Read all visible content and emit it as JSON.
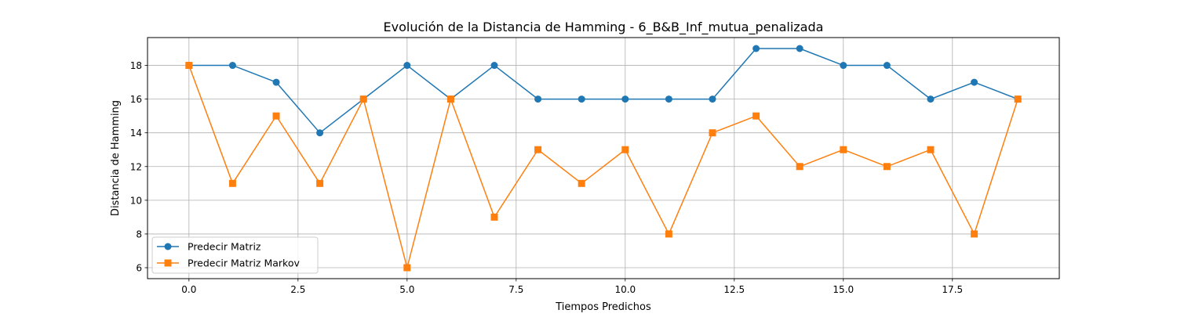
{
  "chart_data": {
    "type": "line",
    "title": "Evolución de la Distancia de Hamming - 6_B&B_Inf_mutua_penalizada",
    "xlabel": "Tiempos Predichos",
    "ylabel": "Distancia de Hamming",
    "x": [
      0,
      1,
      2,
      3,
      4,
      5,
      6,
      7,
      8,
      9,
      10,
      11,
      12,
      13,
      14,
      15,
      16,
      17,
      18,
      19
    ],
    "xlim": [
      -0.95,
      19.95
    ],
    "ylim": [
      5.35,
      19.65
    ],
    "xticks": [
      0,
      2.5,
      5,
      7.5,
      10,
      12.5,
      15,
      17.5
    ],
    "xtick_labels": [
      "0.0",
      "2.5",
      "5.0",
      "7.5",
      "10.0",
      "12.5",
      "15.0",
      "17.5"
    ],
    "yticks": [
      6,
      8,
      10,
      12,
      14,
      16,
      18
    ],
    "ytick_labels": [
      "6",
      "8",
      "10",
      "12",
      "14",
      "16",
      "18"
    ],
    "grid": true,
    "legend_position": "lower-left",
    "series": [
      {
        "name": "Predecir Matriz",
        "color": "#1f77b4",
        "marker": "circle",
        "values": [
          18,
          18,
          17,
          14,
          16,
          18,
          16,
          18,
          16,
          16,
          16,
          16,
          16,
          19,
          19,
          18,
          18,
          16,
          17,
          16
        ]
      },
      {
        "name": "Predecir Matriz Markov",
        "color": "#ff7f0e",
        "marker": "square",
        "values": [
          18,
          11,
          15,
          11,
          16,
          6,
          16,
          9,
          13,
          11,
          13,
          8,
          14,
          15,
          12,
          13,
          12,
          13,
          8,
          16
        ]
      }
    ]
  }
}
